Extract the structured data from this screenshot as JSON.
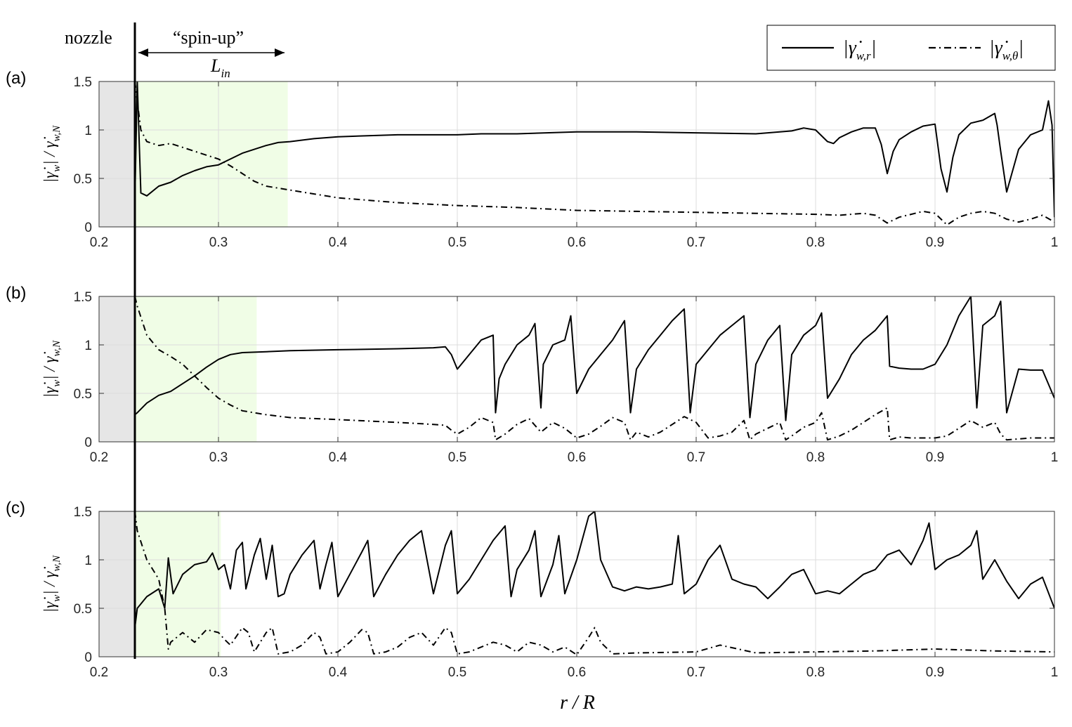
{
  "figure": {
    "nozzle_label": "nozzle",
    "spinup_label": "“spin-up”",
    "lin_label": {
      "main": "L",
      "sub": "in"
    },
    "nozzle_r": 0.23,
    "xlabel": "r / R",
    "ylabel": {
      "main": "|γ̇",
      "sub1": "w",
      "mid": "| / γ̇",
      "sub2": "w,N"
    },
    "legend": [
      {
        "style": "solid",
        "main": "|γ̇",
        "sub": "w,r",
        "close": "|"
      },
      {
        "style": "dashdot",
        "main": "|γ̇",
        "sub": "w,θ",
        "close": "|"
      }
    ],
    "colors": {
      "line": "#000000",
      "nozzle_fill": "#e6e6e6",
      "spinup_fill": "#f0fde6",
      "grid": "#dcdcdc"
    }
  },
  "chart_data": [
    {
      "type": "line",
      "panel_label": "(a)",
      "xlim": [
        0.2,
        1.0
      ],
      "ylim": [
        0,
        1.5
      ],
      "xticks": [
        "0.2",
        "0.3",
        "0.4",
        "0.5",
        "0.6",
        "0.7",
        "0.8",
        "0.9",
        "1"
      ],
      "yticks": [
        "0",
        "0.5",
        "1",
        "1.5"
      ],
      "grid": true,
      "spinup_region": [
        0.23,
        0.358
      ],
      "series": [
        {
          "name": "|γ̇w,r|",
          "style": "solid",
          "x": [
            0.23,
            0.232,
            0.235,
            0.24,
            0.25,
            0.26,
            0.27,
            0.28,
            0.29,
            0.3,
            0.31,
            0.32,
            0.33,
            0.34,
            0.35,
            0.36,
            0.38,
            0.4,
            0.45,
            0.5,
            0.52,
            0.55,
            0.6,
            0.65,
            0.7,
            0.75,
            0.78,
            0.79,
            0.8,
            0.81,
            0.815,
            0.82,
            0.83,
            0.84,
            0.85,
            0.855,
            0.86,
            0.865,
            0.87,
            0.88,
            0.89,
            0.9,
            0.905,
            0.91,
            0.915,
            0.92,
            0.93,
            0.94,
            0.95,
            0.952,
            0.955,
            0.96,
            0.97,
            0.98,
            0.99,
            0.995,
            0.998,
            1.0
          ],
          "y": [
            0.28,
            1.5,
            0.35,
            0.32,
            0.42,
            0.46,
            0.53,
            0.58,
            0.62,
            0.64,
            0.7,
            0.76,
            0.8,
            0.84,
            0.87,
            0.88,
            0.91,
            0.93,
            0.95,
            0.95,
            0.96,
            0.96,
            0.98,
            0.98,
            0.97,
            0.96,
            0.99,
            1.02,
            1.0,
            0.88,
            0.86,
            0.92,
            0.98,
            1.02,
            1.02,
            0.85,
            0.55,
            0.78,
            0.9,
            0.98,
            1.04,
            1.06,
            0.6,
            0.36,
            0.72,
            0.95,
            1.07,
            1.1,
            1.17,
            1.05,
            0.78,
            0.36,
            0.8,
            0.95,
            1.0,
            1.3,
            1.05,
            0.1
          ]
        },
        {
          "name": "|γ̇w,θ|",
          "style": "dashdot",
          "x": [
            0.23,
            0.232,
            0.235,
            0.24,
            0.25,
            0.26,
            0.27,
            0.28,
            0.29,
            0.3,
            0.31,
            0.32,
            0.33,
            0.34,
            0.35,
            0.36,
            0.38,
            0.4,
            0.45,
            0.5,
            0.55,
            0.6,
            0.65,
            0.7,
            0.75,
            0.8,
            0.82,
            0.84,
            0.85,
            0.86,
            0.87,
            0.88,
            0.89,
            0.9,
            0.91,
            0.92,
            0.93,
            0.94,
            0.95,
            0.96,
            0.97,
            0.98,
            0.99,
            1.0
          ],
          "y": [
            1.5,
            1.3,
            1.0,
            0.88,
            0.84,
            0.86,
            0.82,
            0.78,
            0.74,
            0.7,
            0.63,
            0.55,
            0.47,
            0.42,
            0.4,
            0.38,
            0.34,
            0.3,
            0.25,
            0.22,
            0.2,
            0.17,
            0.16,
            0.15,
            0.14,
            0.13,
            0.12,
            0.14,
            0.12,
            0.04,
            0.1,
            0.13,
            0.16,
            0.14,
            0.02,
            0.1,
            0.14,
            0.16,
            0.14,
            0.08,
            0.05,
            0.08,
            0.12,
            0.05
          ]
        }
      ]
    },
    {
      "type": "line",
      "panel_label": "(b)",
      "xlim": [
        0.2,
        1.0
      ],
      "ylim": [
        0,
        1.5
      ],
      "xticks": [
        "0.2",
        "0.3",
        "0.4",
        "0.5",
        "0.6",
        "0.7",
        "0.8",
        "0.9",
        "1"
      ],
      "yticks": [
        "0",
        "0.5",
        "1",
        "1.5"
      ],
      "grid": true,
      "spinup_region": [
        0.23,
        0.332
      ],
      "series": [
        {
          "name": "|γ̇w,r|",
          "style": "solid",
          "x": [
            0.23,
            0.232,
            0.24,
            0.25,
            0.26,
            0.27,
            0.28,
            0.29,
            0.3,
            0.31,
            0.32,
            0.34,
            0.36,
            0.4,
            0.45,
            0.48,
            0.49,
            0.495,
            0.5,
            0.51,
            0.52,
            0.53,
            0.532,
            0.535,
            0.54,
            0.55,
            0.56,
            0.565,
            0.57,
            0.572,
            0.58,
            0.59,
            0.595,
            0.6,
            0.61,
            0.62,
            0.63,
            0.64,
            0.645,
            0.65,
            0.66,
            0.67,
            0.68,
            0.69,
            0.695,
            0.7,
            0.71,
            0.72,
            0.73,
            0.74,
            0.745,
            0.75,
            0.76,
            0.77,
            0.775,
            0.78,
            0.79,
            0.8,
            0.805,
            0.81,
            0.82,
            0.83,
            0.84,
            0.85,
            0.86,
            0.862,
            0.87,
            0.88,
            0.89,
            0.9,
            0.91,
            0.92,
            0.93,
            0.935,
            0.94,
            0.95,
            0.955,
            0.96,
            0.97,
            0.98,
            0.99,
            1.0
          ],
          "y": [
            0.28,
            0.3,
            0.4,
            0.48,
            0.52,
            0.6,
            0.68,
            0.77,
            0.85,
            0.9,
            0.92,
            0.93,
            0.94,
            0.95,
            0.96,
            0.97,
            0.98,
            0.9,
            0.75,
            0.9,
            1.05,
            1.1,
            0.3,
            0.65,
            0.8,
            1.0,
            1.1,
            1.22,
            0.35,
            0.8,
            1.0,
            1.05,
            1.3,
            0.5,
            0.75,
            0.9,
            1.05,
            1.25,
            0.3,
            0.75,
            0.95,
            1.1,
            1.25,
            1.37,
            0.3,
            0.8,
            0.95,
            1.1,
            1.2,
            1.3,
            0.25,
            0.8,
            1.05,
            1.2,
            0.22,
            0.9,
            1.1,
            1.2,
            1.33,
            0.45,
            0.65,
            0.9,
            1.05,
            1.15,
            1.3,
            0.78,
            0.76,
            0.75,
            0.75,
            0.8,
            1.0,
            1.3,
            1.5,
            0.35,
            1.2,
            1.3,
            1.45,
            0.3,
            0.75,
            0.74,
            0.74,
            0.45
          ]
        },
        {
          "name": "|γ̇w,θ|",
          "style": "dashdot",
          "x": [
            0.23,
            0.232,
            0.24,
            0.25,
            0.26,
            0.27,
            0.28,
            0.29,
            0.3,
            0.31,
            0.32,
            0.34,
            0.36,
            0.4,
            0.45,
            0.48,
            0.49,
            0.495,
            0.5,
            0.51,
            0.52,
            0.53,
            0.532,
            0.54,
            0.55,
            0.56,
            0.57,
            0.58,
            0.59,
            0.6,
            0.61,
            0.62,
            0.63,
            0.64,
            0.645,
            0.65,
            0.66,
            0.67,
            0.68,
            0.69,
            0.7,
            0.71,
            0.72,
            0.73,
            0.74,
            0.745,
            0.75,
            0.76,
            0.77,
            0.775,
            0.78,
            0.79,
            0.8,
            0.805,
            0.81,
            0.82,
            0.83,
            0.84,
            0.85,
            0.86,
            0.862,
            0.87,
            0.88,
            0.89,
            0.9,
            0.91,
            0.92,
            0.93,
            0.94,
            0.95,
            0.955,
            0.96,
            0.97,
            0.98,
            0.99,
            1.0
          ],
          "y": [
            1.5,
            1.4,
            1.1,
            0.95,
            0.88,
            0.8,
            0.68,
            0.56,
            0.45,
            0.38,
            0.32,
            0.28,
            0.25,
            0.23,
            0.2,
            0.18,
            0.17,
            0.12,
            0.08,
            0.15,
            0.25,
            0.2,
            0.02,
            0.08,
            0.18,
            0.24,
            0.1,
            0.2,
            0.14,
            0.04,
            0.08,
            0.16,
            0.25,
            0.2,
            0.02,
            0.1,
            0.05,
            0.1,
            0.18,
            0.26,
            0.2,
            0.04,
            0.06,
            0.1,
            0.22,
            0.02,
            0.08,
            0.14,
            0.2,
            0.02,
            0.06,
            0.15,
            0.2,
            0.3,
            0.02,
            0.06,
            0.12,
            0.2,
            0.28,
            0.35,
            0.02,
            0.05,
            0.04,
            0.04,
            0.04,
            0.06,
            0.14,
            0.22,
            0.15,
            0.2,
            0.08,
            0.02,
            0.03,
            0.04,
            0.04,
            0.04
          ]
        }
      ]
    },
    {
      "type": "line",
      "panel_label": "(c)",
      "xlim": [
        0.2,
        1.0
      ],
      "ylim": [
        0,
        1.5
      ],
      "xticks": [
        "0.2",
        "0.3",
        "0.4",
        "0.5",
        "0.6",
        "0.7",
        "0.8",
        "0.9",
        "1"
      ],
      "yticks": [
        "0",
        "0.5",
        "1",
        "1.5"
      ],
      "grid": true,
      "spinup_region": [
        0.23,
        0.302
      ],
      "series": [
        {
          "name": "|γ̇w,r|",
          "style": "solid",
          "x": [
            0.23,
            0.232,
            0.24,
            0.25,
            0.255,
            0.258,
            0.262,
            0.27,
            0.28,
            0.29,
            0.295,
            0.3,
            0.305,
            0.31,
            0.315,
            0.32,
            0.323,
            0.33,
            0.335,
            0.34,
            0.345,
            0.35,
            0.355,
            0.36,
            0.37,
            0.38,
            0.385,
            0.39,
            0.395,
            0.4,
            0.41,
            0.42,
            0.425,
            0.43,
            0.44,
            0.45,
            0.46,
            0.47,
            0.48,
            0.49,
            0.495,
            0.5,
            0.51,
            0.52,
            0.53,
            0.54,
            0.545,
            0.55,
            0.56,
            0.565,
            0.57,
            0.58,
            0.585,
            0.59,
            0.6,
            0.61,
            0.615,
            0.62,
            0.63,
            0.64,
            0.65,
            0.66,
            0.67,
            0.68,
            0.685,
            0.69,
            0.7,
            0.71,
            0.72,
            0.73,
            0.74,
            0.75,
            0.76,
            0.77,
            0.78,
            0.79,
            0.8,
            0.81,
            0.82,
            0.83,
            0.84,
            0.85,
            0.86,
            0.87,
            0.88,
            0.89,
            0.895,
            0.9,
            0.91,
            0.92,
            0.93,
            0.935,
            0.94,
            0.95,
            0.96,
            0.97,
            0.98,
            0.99,
            1.0
          ],
          "y": [
            0.3,
            0.5,
            0.62,
            0.7,
            0.5,
            1.02,
            0.65,
            0.85,
            0.95,
            0.98,
            1.07,
            0.9,
            0.95,
            0.7,
            1.1,
            1.18,
            0.7,
            1.05,
            1.22,
            0.8,
            1.15,
            0.62,
            0.65,
            0.85,
            1.05,
            1.2,
            0.7,
            0.95,
            1.18,
            0.62,
            0.85,
            1.08,
            1.2,
            0.62,
            0.85,
            1.05,
            1.2,
            1.3,
            0.65,
            1.15,
            1.3,
            0.65,
            0.8,
            1.0,
            1.2,
            1.35,
            0.62,
            0.9,
            1.1,
            1.3,
            0.62,
            0.95,
            1.25,
            0.65,
            1.0,
            1.45,
            1.5,
            1.0,
            0.72,
            0.68,
            0.72,
            0.7,
            0.72,
            0.75,
            1.25,
            0.65,
            0.75,
            1.0,
            1.15,
            0.8,
            0.75,
            0.72,
            0.6,
            0.72,
            0.85,
            0.9,
            0.65,
            0.68,
            0.65,
            0.75,
            0.85,
            0.9,
            1.05,
            1.1,
            0.95,
            1.2,
            1.38,
            0.9,
            1.0,
            1.05,
            1.15,
            1.3,
            0.8,
            1.0,
            0.78,
            0.6,
            0.75,
            0.82,
            0.5
          ]
        },
        {
          "name": "|γ̇w,θ|",
          "style": "dashdot",
          "x": [
            0.23,
            0.232,
            0.24,
            0.25,
            0.255,
            0.258,
            0.26,
            0.27,
            0.28,
            0.29,
            0.3,
            0.305,
            0.31,
            0.32,
            0.325,
            0.33,
            0.34,
            0.345,
            0.35,
            0.36,
            0.37,
            0.38,
            0.385,
            0.39,
            0.4,
            0.41,
            0.42,
            0.425,
            0.43,
            0.44,
            0.45,
            0.46,
            0.47,
            0.48,
            0.49,
            0.495,
            0.5,
            0.51,
            0.52,
            0.53,
            0.54,
            0.55,
            0.56,
            0.57,
            0.58,
            0.59,
            0.6,
            0.61,
            0.615,
            0.62,
            0.63,
            0.65,
            0.7,
            0.72,
            0.75,
            0.8,
            0.85,
            0.9,
            0.95,
            1.0
          ],
          "y": [
            1.5,
            1.3,
            1.0,
            0.8,
            0.5,
            0.08,
            0.15,
            0.25,
            0.15,
            0.28,
            0.25,
            0.18,
            0.12,
            0.3,
            0.25,
            0.05,
            0.25,
            0.3,
            0.03,
            0.05,
            0.12,
            0.25,
            0.2,
            0.03,
            0.05,
            0.15,
            0.28,
            0.25,
            0.03,
            0.05,
            0.1,
            0.2,
            0.25,
            0.12,
            0.3,
            0.25,
            0.03,
            0.05,
            0.1,
            0.15,
            0.12,
            0.05,
            0.15,
            0.12,
            0.05,
            0.1,
            0.02,
            0.2,
            0.3,
            0.15,
            0.03,
            0.04,
            0.05,
            0.12,
            0.04,
            0.05,
            0.06,
            0.08,
            0.06,
            0.05
          ]
        }
      ]
    }
  ]
}
